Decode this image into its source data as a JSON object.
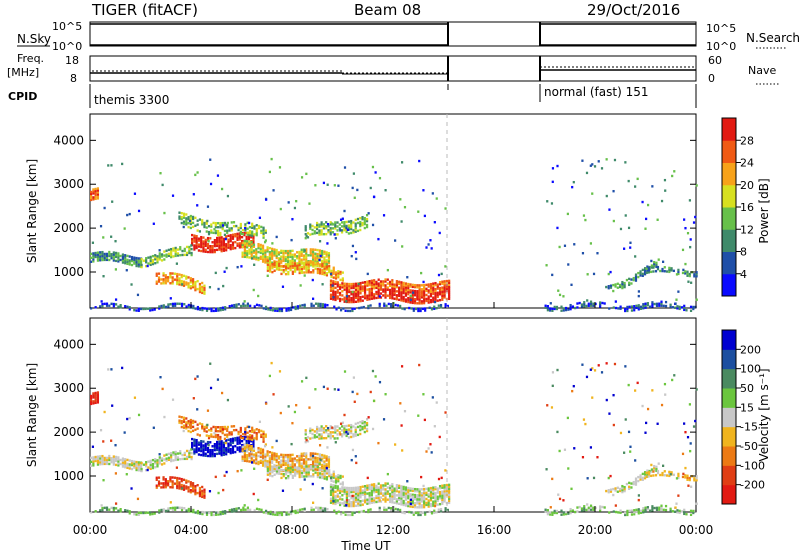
{
  "header": {
    "station": "TIGER (fitACF)",
    "beam": "Beam 08",
    "date": "29/Oct/2016"
  },
  "strips": {
    "nsky_label": "N.Sky",
    "nsky_ticks": [
      "10^5",
      "10^0"
    ],
    "nsearch_label": "N.Search",
    "nsearch_ticks": [
      "10^5",
      "10^0"
    ],
    "freq_label": "Freq.",
    "freq_unit": "[MHz]",
    "freq_ticks": [
      "18",
      "8"
    ],
    "nave_label": "Nave",
    "nave_ticks": [
      "60",
      "0"
    ],
    "cpid_label": "CPID",
    "cpid_modes": [
      "themis 3300",
      "normal (fast) 151"
    ]
  },
  "colors": {
    "c1": "#0a0aff",
    "c2": "#1f4fa8",
    "c3": "#3f8a6a",
    "c4": "#67c04a",
    "c5": "#d7e020",
    "c6": "#f7a21a",
    "c7": "#f05a14",
    "c8": "#e21a12",
    "v1": "#0000d0",
    "v2": "#1c4fa0",
    "v3": "#4a8a60",
    "v4": "#6bc63e",
    "v5": "#c8c8c8",
    "v6": "#f0b41e",
    "v7": "#ec7a14",
    "v8": "#e03e14",
    "v9": "#e21a12"
  },
  "chart_data": [
    {
      "type": "heatmap",
      "panel": "power",
      "ylabel": "Slant Range [km]",
      "ylim": [
        180,
        4600
      ],
      "yticks": [
        1000,
        2000,
        3000,
        4000
      ],
      "xlim": [
        0,
        24
      ],
      "colorbar_label": "Power [dB]",
      "colorbar_ticks": [
        "28",
        "24",
        "20",
        "16",
        "12",
        "8",
        "4"
      ],
      "colorbar_range": [
        0,
        32
      ]
    },
    {
      "type": "heatmap",
      "panel": "velocity",
      "ylabel": "Slant Range [km]",
      "ylim": [
        180,
        4600
      ],
      "yticks": [
        1000,
        2000,
        3000,
        4000
      ],
      "xlim": [
        0,
        24
      ],
      "xlabel": "Time UT",
      "xticks": [
        "00:00",
        "04:00",
        "08:00",
        "12:00",
        "16:00",
        "20:00",
        "00:00"
      ],
      "colorbar_label": "Velocity [m s⁻¹]",
      "colorbar_ticks": [
        "200",
        "100",
        "50",
        "15",
        "-15",
        "-50",
        "-100",
        "-200"
      ]
    }
  ]
}
